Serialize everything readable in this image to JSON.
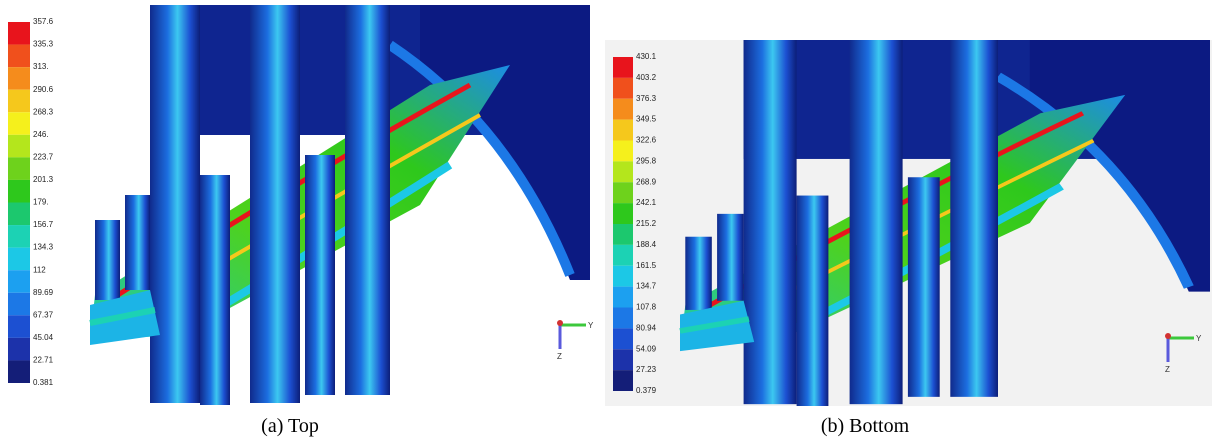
{
  "panels": [
    {
      "caption": "(a) Top",
      "legend_labels": [
        "357.6",
        "335.3",
        "313.",
        "290.6",
        "268.3",
        "246.",
        "223.7",
        "201.3",
        "179.",
        "156.7",
        "134.3",
        "112",
        "89.69",
        "67.37",
        "45.04",
        "22.71",
        "0.381"
      ],
      "axis_labels": [
        "Y",
        "Z"
      ]
    },
    {
      "caption": "(b) Bottom",
      "legend_labels": [
        "430.1",
        "403.2",
        "376.3",
        "349.5",
        "322.6",
        "295.8",
        "268.9",
        "242.1",
        "215.2",
        "188.4",
        "161.5",
        "134.7",
        "107.8",
        "80.94",
        "54.09",
        "27.23",
        "0.379"
      ],
      "axis_labels": [
        "Y",
        "Z"
      ]
    }
  ],
  "legend_colors": [
    "#e8141c",
    "#f0501c",
    "#f58c1c",
    "#f5c81c",
    "#f5f01c",
    "#b4e61c",
    "#6ed21c",
    "#2ec81c",
    "#1cc86e",
    "#1cd2b4",
    "#1cc8e6",
    "#1ca0f0",
    "#1c78e6",
    "#1c50d2",
    "#1c32aa",
    "#141e78"
  ]
}
